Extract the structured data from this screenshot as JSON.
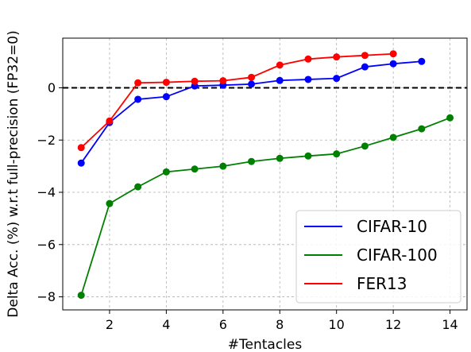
{
  "chart_data": {
    "type": "line",
    "title": "",
    "xlabel": "#Tentacles",
    "ylabel": "Delta Acc. (%) w.r.t full-precision (FP32=0)",
    "xlim": [
      0.35,
      14.6
    ],
    "ylim": [
      -8.5,
      1.9
    ],
    "xticks": [
      2,
      4,
      6,
      8,
      10,
      12,
      14
    ],
    "yticks": [
      -8,
      -6,
      -4,
      -2,
      0
    ],
    "ytick_labels": [
      "−8",
      "−6",
      "−4",
      "−2",
      "0"
    ],
    "grid": true,
    "reference_line": {
      "y": 0,
      "style": "dashed",
      "color": "#000000"
    },
    "legend_position": "lower-right",
    "series": [
      {
        "name": "CIFAR-10",
        "color": "#0000ff",
        "x": [
          1,
          2,
          3,
          4,
          5,
          6,
          7,
          8,
          9,
          10,
          11,
          12,
          13
        ],
        "y": [
          -2.88,
          -1.33,
          -0.44,
          -0.34,
          0.07,
          0.1,
          0.14,
          0.28,
          0.32,
          0.36,
          0.8,
          0.92,
          1.01
        ]
      },
      {
        "name": "CIFAR-100",
        "color": "#008000",
        "x": [
          1,
          2,
          3,
          4,
          5,
          6,
          7,
          8,
          9,
          10,
          11,
          12,
          13,
          14
        ],
        "y": [
          -7.94,
          -4.43,
          -3.79,
          -3.22,
          -3.11,
          -3.0,
          -2.82,
          -2.7,
          -2.61,
          -2.53,
          -2.23,
          -1.9,
          -1.57,
          -1.15
        ]
      },
      {
        "name": "FER13",
        "color": "#ff0000",
        "x": [
          1,
          2,
          3,
          4,
          5,
          6,
          7,
          8,
          9,
          10,
          11,
          12
        ],
        "y": [
          -2.29,
          -1.27,
          0.19,
          0.21,
          0.25,
          0.27,
          0.4,
          0.87,
          1.1,
          1.18,
          1.24,
          1.3
        ]
      }
    ]
  }
}
